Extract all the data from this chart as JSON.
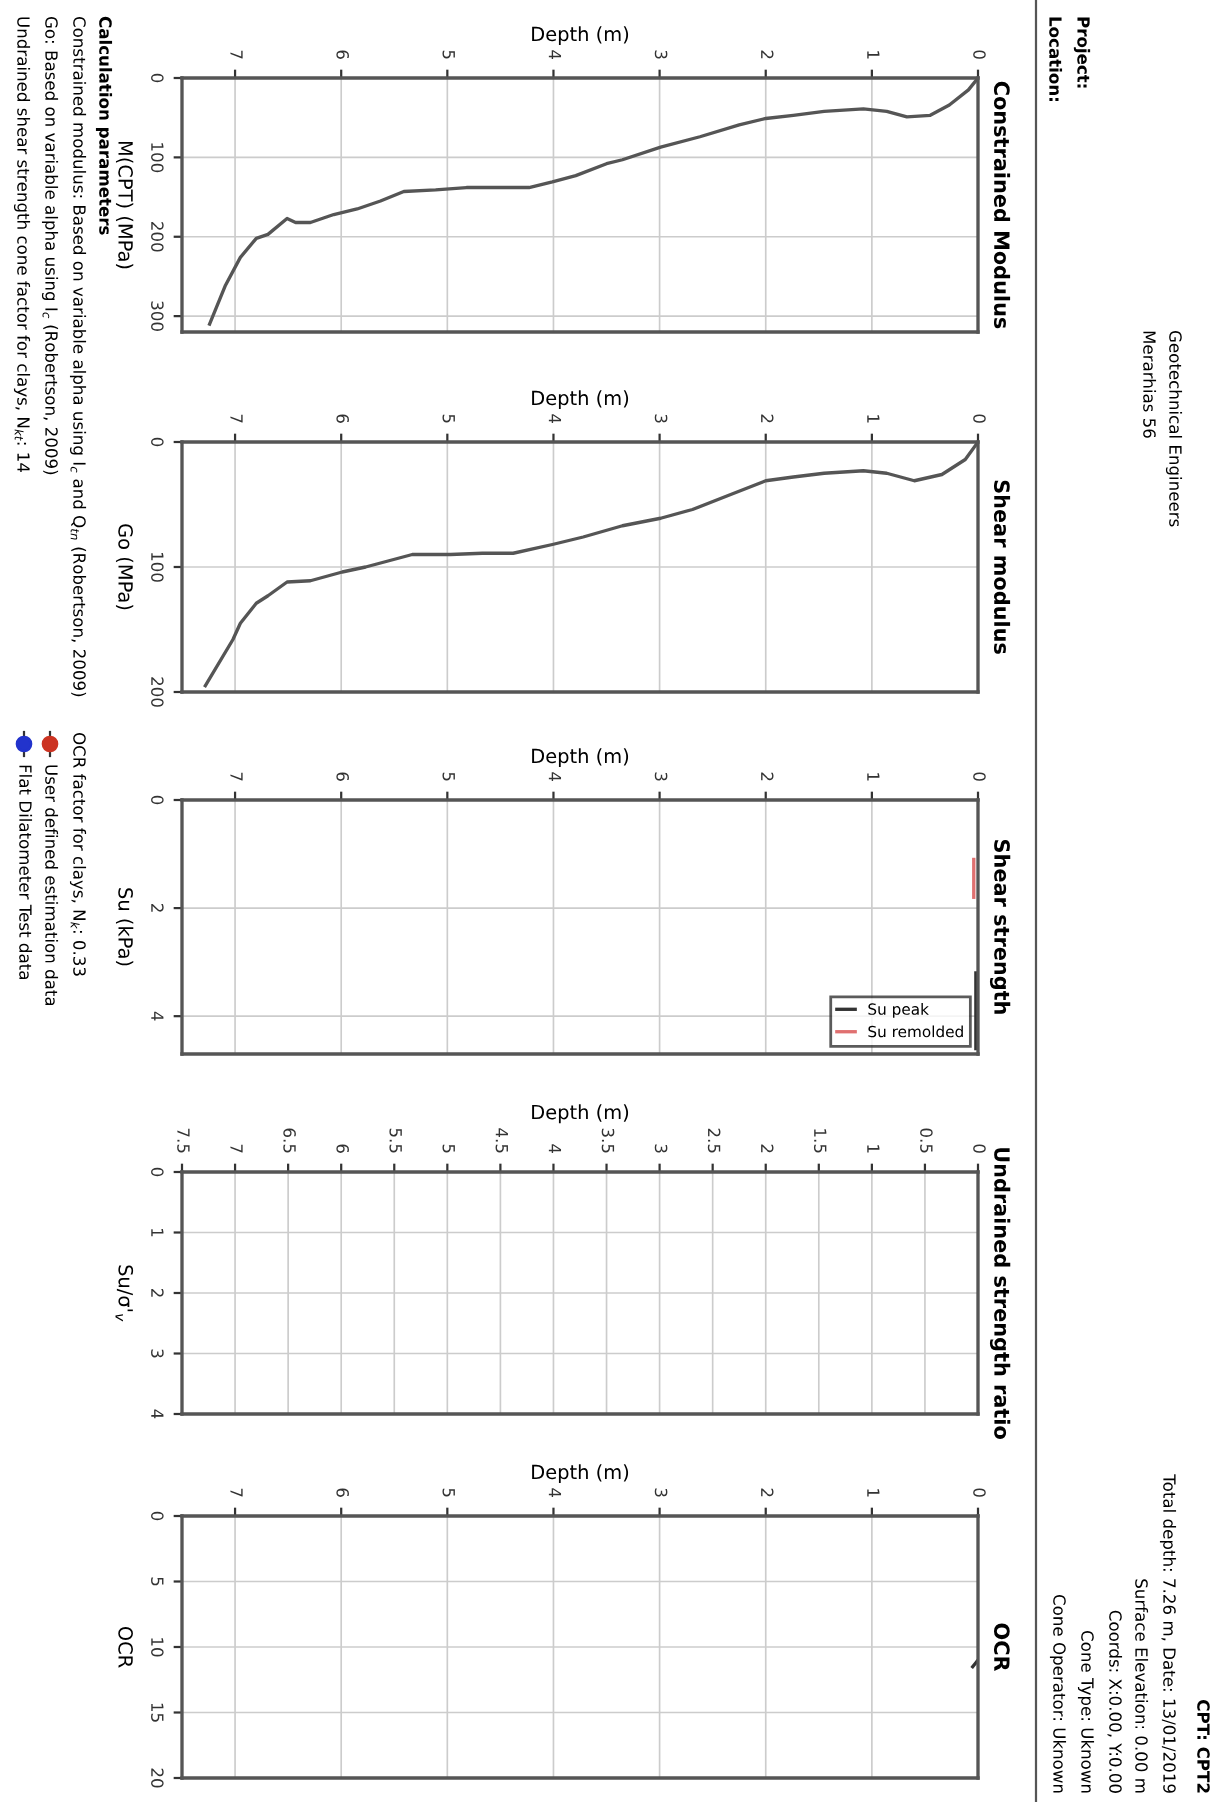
{
  "chart_data": [
    {
      "type": "line",
      "title": "Constrained Modulus",
      "xlabel": "Depth (m)",
      "ylabel": "M(CPT) (MPa)",
      "xlim": [
        7.5,
        0
      ],
      "xticks": [
        0,
        1,
        2,
        3,
        4,
        5,
        6,
        7
      ],
      "ylim": [
        320,
        0
      ],
      "yticks": [
        0,
        100,
        200,
        300
      ],
      "grid": true,
      "series": [
        {
          "color": "#555555",
          "x": [
            0,
            0.09,
            0.27,
            0.45,
            0.67,
            0.86,
            1.08,
            1.45,
            1.74,
            2.0,
            2.25,
            2.62,
            2.99,
            3.35,
            3.5,
            3.79,
            4.01,
            4.23,
            4.53,
            4.82,
            5.11,
            5.41,
            5.63,
            5.85,
            6.07,
            6.29,
            6.43,
            6.51,
            6.69,
            6.8,
            6.95,
            7.09,
            7.24
          ],
          "values": [
            0,
            15,
            34,
            47,
            49,
            42,
            39,
            42,
            47,
            51,
            59,
            74,
            87,
            103,
            108,
            123,
            131,
            138,
            138,
            138,
            141,
            143,
            155,
            165,
            172,
            182,
            182,
            177,
            197,
            202,
            226,
            261,
            310
          ]
        }
      ],
      "annotations": [
        "Project:",
        "Location:",
        "Geotechnical Engineers",
        "Merarhias 56",
        "Calculation parameters",
        "Constrained modulus: Based on variable alpha using I$_{c}$ and Q$_{tn}$ (Robertson, 2009)",
        "Go: Based on variable alpha using I$_{c}$ (Robertson, 2009)",
        "Undrained shear strength cone factor for clays, N$_{kt}$: 14"
      ]
    },
    {
      "type": "line",
      "title": "Shear modulus",
      "xlabel": "Depth (m)",
      "ylabel": "Go (MPa)",
      "xlim": [
        7.5,
        0
      ],
      "xticks": [
        0,
        1,
        2,
        3,
        4,
        5,
        6,
        7
      ],
      "ylim": [
        200,
        0
      ],
      "yticks": [
        0,
        100,
        200
      ],
      "grid": true,
      "series": [
        {
          "color": "#555555",
          "x": [
            0,
            0.12,
            0.34,
            0.6,
            0.86,
            1.08,
            1.45,
            1.74,
            2.0,
            2.33,
            2.69,
            2.99,
            3.35,
            3.72,
            4.01,
            4.38,
            4.67,
            4.97,
            5.33,
            5.55,
            5.77,
            5.99,
            6.29,
            6.51,
            6.69,
            6.8,
            6.95,
            7.02,
            7.28
          ],
          "values": [
            0,
            14,
            26,
            31,
            25,
            23,
            25,
            28,
            31,
            42,
            54,
            61,
            67,
            76,
            82,
            89,
            89,
            90,
            90,
            95,
            100,
            104,
            111,
            112,
            123,
            129,
            145,
            158,
            195
          ]
        }
      ]
    },
    {
      "type": "line",
      "title": "Shear strength",
      "xlabel": "Depth (m)",
      "ylabel": "Su (kPa)",
      "xlim": [
        7.5,
        0
      ],
      "xticks": [
        0,
        1,
        2,
        3,
        4,
        5,
        6,
        7
      ],
      "ylim": [
        4.7,
        0
      ],
      "yticks": [
        0,
        2,
        4
      ],
      "grid": true,
      "legend": "bottom right",
      "series": [
        {
          "name": "Su peak",
          "color": "#333333",
          "x": [
            0.02,
            0.02
          ],
          "values": [
            3.2,
            4.6
          ]
        },
        {
          "name": "Su remolded",
          "color": "#e07070",
          "x": [
            0.04,
            0.04
          ],
          "values": [
            1.1,
            1.8
          ]
        }
      ]
    },
    {
      "type": "line",
      "title": "Undrained strength ratio",
      "xlabel": "Depth (m)",
      "ylabel": "Su/σ'$_{v}$",
      "xlim": [
        7.5,
        0
      ],
      "xticks": [
        0,
        0.5,
        1,
        1.5,
        2,
        2.5,
        3,
        3.5,
        4,
        4.5,
        5,
        5.5,
        6,
        6.5,
        7,
        7.5
      ],
      "ylim": [
        4,
        0
      ],
      "yticks": [
        0,
        1,
        2,
        3,
        4
      ],
      "grid": true
    },
    {
      "type": "line",
      "title": "OCR",
      "xlabel": "Depth (m)",
      "ylabel": "OCR",
      "xlim": [
        7.5,
        0
      ],
      "xticks": [
        0,
        1,
        2,
        3,
        4,
        5,
        6,
        7
      ],
      "ylim": [
        20,
        0
      ],
      "yticks": [
        0,
        5,
        10,
        15,
        20
      ],
      "grid": true,
      "legend": "left",
      "series": [
        {
          "color": "#333333",
          "x": [
            0.0,
            0.05
          ],
          "values": [
            11.0,
            11.5
          ]
        },
        {
          "name": "User defined estimation data",
          "color": "#cc3322",
          "marker": "circle"
        },
        {
          "name": "Flat Dilatometer Test data",
          "color": "#2233cc",
          "marker": "circle"
        }
      ],
      "annotations": [
        "OCR factor for clays, N$_{k}$: 0.33",
        "CPT: CPT2",
        "Total depth: 7.26 m, Date: 13/01/2019",
        "Surface Elevation: 0.00 m",
        "Coords: X:0.00, Y:0.00",
        "Cone Type: Uknown",
        "Cone Operator: Uknown"
      ]
    }
  ]
}
